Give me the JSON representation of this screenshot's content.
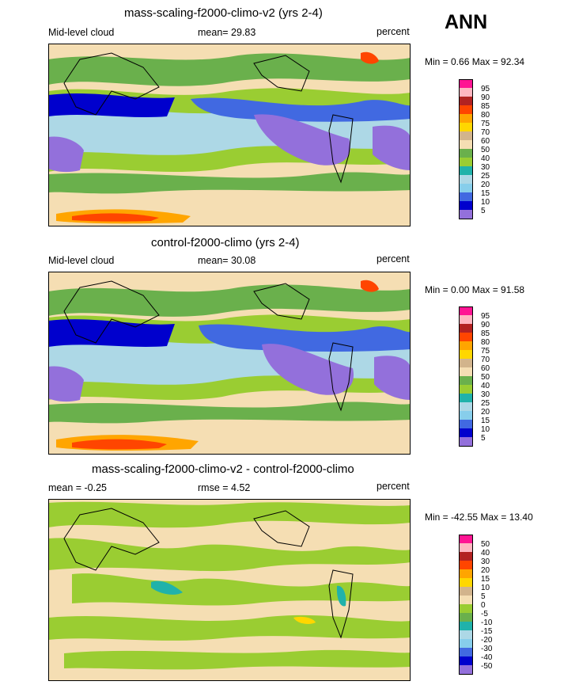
{
  "header": {
    "season": "ANN"
  },
  "chart_data": [
    {
      "type": "heatmap",
      "title": "mass-scaling-f2000-climo-v2 (yrs 2-4)",
      "variable": "Mid-level cloud",
      "stat_text": "mean=  29.83",
      "units": "percent",
      "minmax_text": "Min =   0.66 Max =  92.34",
      "colorbar": {
        "levels": [
          "95",
          "90",
          "85",
          "80",
          "75",
          "70",
          "60",
          "50",
          "40",
          "30",
          "25",
          "20",
          "15",
          "10",
          "5"
        ],
        "colors": [
          "#ff1493",
          "#ffb6c1",
          "#b22222",
          "#ff4500",
          "#ffa500",
          "#ffd700",
          "#d2b48c",
          "#f5deb3",
          "#6ab04c",
          "#9acd32",
          "#20b2aa",
          "#add8e6",
          "#87ceeb",
          "#4169e1",
          "#0000cd",
          "#9370db"
        ]
      }
    },
    {
      "type": "heatmap",
      "title": "control-f2000-climo (yrs 2-4)",
      "variable": "Mid-level cloud",
      "stat_text": "mean=  30.08",
      "units": "percent",
      "minmax_text": "Min =   0.00 Max =  91.58",
      "colorbar": {
        "levels": [
          "95",
          "90",
          "85",
          "80",
          "75",
          "70",
          "60",
          "50",
          "40",
          "30",
          "25",
          "20",
          "15",
          "10",
          "5"
        ],
        "colors": [
          "#ff1493",
          "#ffb6c1",
          "#b22222",
          "#ff4500",
          "#ffa500",
          "#ffd700",
          "#d2b48c",
          "#f5deb3",
          "#6ab04c",
          "#9acd32",
          "#20b2aa",
          "#add8e6",
          "#87ceeb",
          "#4169e1",
          "#0000cd",
          "#9370db"
        ]
      }
    },
    {
      "type": "heatmap",
      "title": "mass-scaling-f2000-climo-v2 - control-f2000-climo",
      "stat_text": "mean =  -0.25",
      "rmse_text": "rmse =    4.52",
      "units": "percent",
      "minmax_text": "Min = -42.55 Max =  13.40",
      "colorbar": {
        "levels": [
          "50",
          "40",
          "30",
          "20",
          "15",
          "10",
          "5",
          "0",
          "-5",
          "-10",
          "-15",
          "-20",
          "-30",
          "-40",
          "-50"
        ],
        "colors": [
          "#ff1493",
          "#ffb6c1",
          "#b22222",
          "#ff4500",
          "#ffa500",
          "#ffd700",
          "#d2b48c",
          "#f5deb3",
          "#9acd32",
          "#6ab04c",
          "#20b2aa",
          "#add8e6",
          "#87ceeb",
          "#4169e1",
          "#0000cd",
          "#9370db"
        ]
      }
    }
  ]
}
